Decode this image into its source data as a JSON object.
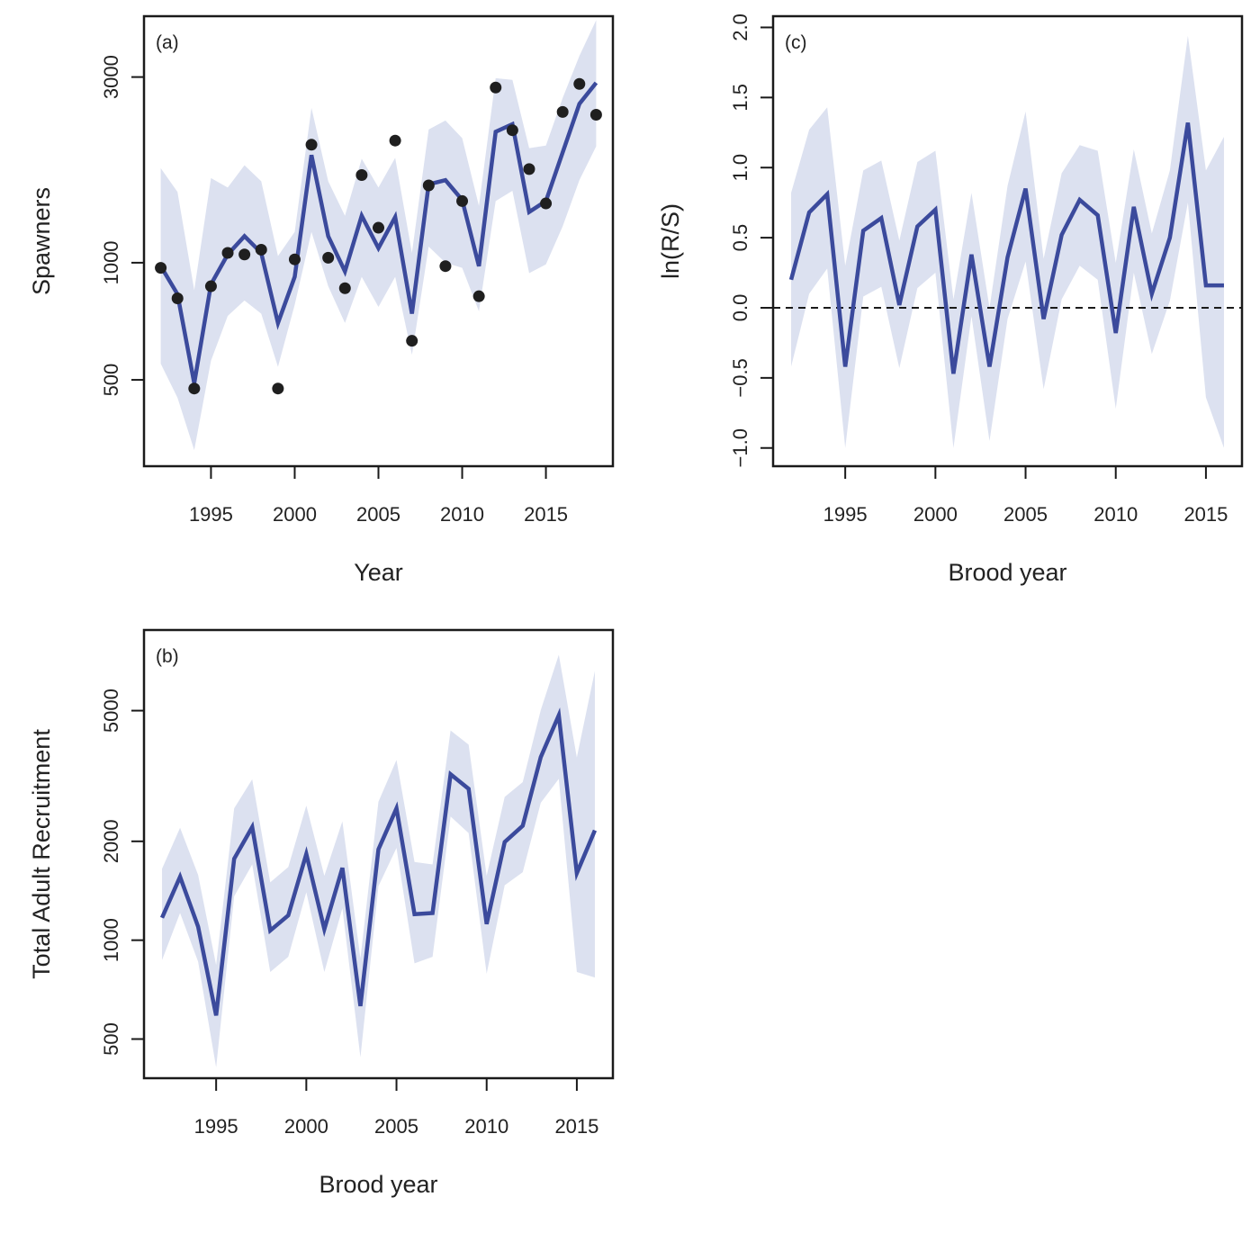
{
  "colors": {
    "line": "#3b4a9c",
    "band": "#dce1f0",
    "points": "#1f1f1f",
    "axis": "#1a1a1a"
  },
  "chart_data": [
    {
      "id": "a",
      "type": "line",
      "panel_label": "(a)",
      "xlabel": "Year",
      "ylabel": "Spawners",
      "y_scale": "log",
      "xlim": [
        1991,
        2019
      ],
      "ylim": [
        300,
        4300
      ],
      "x_ticks": [
        1995,
        2000,
        2005,
        2010,
        2015
      ],
      "x_tick_labels": [
        "1995",
        "2000",
        "2005",
        "2010",
        "2015"
      ],
      "y_ticks": [
        500,
        1000,
        3000
      ],
      "y_tick_labels": [
        "500",
        "1000",
        "3000"
      ],
      "series": [
        {
          "kind": "estimate",
          "x": [
            1992,
            1993,
            1994,
            1995,
            1996,
            1997,
            1998,
            1999,
            2000,
            2001,
            2002,
            2003,
            2004,
            2005,
            2006,
            2007,
            2008,
            2009,
            2010,
            2011,
            2012,
            2013,
            2014,
            2015,
            2016,
            2017,
            2018
          ],
          "values": [
            980,
            830,
            490,
            880,
            1050,
            1170,
            1060,
            700,
            920,
            1890,
            1170,
            950,
            1320,
            1090,
            1310,
            740,
            1590,
            1630,
            1450,
            980,
            2170,
            2270,
            1350,
            1440,
            1920,
            2560,
            2900
          ],
          "lower": [
            550,
            450,
            330,
            560,
            730,
            800,
            740,
            540,
            780,
            1200,
            870,
            700,
            920,
            770,
            920,
            580,
            1100,
            1000,
            970,
            750,
            1440,
            1530,
            940,
            990,
            1240,
            1630,
            1990
          ],
          "upper": [
            1750,
            1520,
            850,
            1650,
            1560,
            1780,
            1620,
            1040,
            1200,
            2500,
            1620,
            1320,
            1850,
            1560,
            1860,
            1060,
            2200,
            2320,
            2090,
            1400,
            2980,
            2950,
            1970,
            2000,
            2650,
            3400,
            4200
          ]
        },
        {
          "kind": "observed",
          "x": [
            1992,
            1993,
            1994,
            1995,
            1996,
            1997,
            1998,
            1999,
            2000,
            2001,
            2002,
            2003,
            2004,
            2005,
            2006,
            2007,
            2008,
            2009,
            2010,
            2011,
            2012,
            2013,
            2014,
            2015,
            2016,
            2017,
            2018
          ],
          "values": [
            970,
            810,
            475,
            870,
            1060,
            1050,
            1080,
            475,
            1020,
            2010,
            1030,
            860,
            1680,
            1230,
            2060,
            630,
            1580,
            980,
            1440,
            820,
            2820,
            2190,
            1740,
            1420,
            2440,
            2880,
            2400
          ]
        }
      ]
    },
    {
      "id": "b",
      "type": "line",
      "panel_label": "(b)",
      "xlabel": "Brood year",
      "ylabel": "Total Adult Recruitment",
      "y_scale": "log",
      "xlim": [
        1991,
        2017
      ],
      "ylim": [
        380,
        8800
      ],
      "x_ticks": [
        1995,
        2000,
        2005,
        2010,
        2015
      ],
      "x_tick_labels": [
        "1995",
        "2000",
        "2005",
        "2010",
        "2015"
      ],
      "y_ticks": [
        500,
        1000,
        2000,
        5000
      ],
      "y_tick_labels": [
        "500",
        "1000",
        "2000",
        "5000"
      ],
      "series": [
        {
          "kind": "estimate",
          "x": [
            1992,
            1993,
            1994,
            1995,
            1996,
            1997,
            1998,
            1999,
            2000,
            2001,
            2002,
            2003,
            2004,
            2005,
            2006,
            2007,
            2008,
            2009,
            2010,
            2011,
            2012,
            2013,
            2014,
            2015,
            2016
          ],
          "values": [
            1170,
            1560,
            1100,
            590,
            1770,
            2210,
            1070,
            1190,
            1830,
            1080,
            1660,
            630,
            1890,
            2520,
            1200,
            1210,
            3200,
            2890,
            1120,
            1990,
            2230,
            3610,
            4840,
            1600,
            2160
          ],
          "lower": [
            870,
            1210,
            860,
            410,
            1360,
            1700,
            800,
            890,
            1400,
            800,
            1250,
            440,
            1460,
            1910,
            850,
            890,
            2380,
            2120,
            790,
            1470,
            1610,
            2620,
            3100,
            800,
            770
          ],
          "upper": [
            1650,
            2200,
            1580,
            840,
            2520,
            3090,
            1500,
            1670,
            2570,
            1570,
            2300,
            880,
            2640,
            3540,
            1730,
            1700,
            4350,
            3940,
            1570,
            2730,
            3030,
            5020,
            7400,
            3600,
            6600
          ]
        }
      ]
    },
    {
      "id": "c",
      "type": "line",
      "panel_label": "(c)",
      "xlabel": "Brood year",
      "ylabel": "ln(R/S)",
      "y_scale": "linear",
      "xlim": [
        1991,
        2017
      ],
      "ylim": [
        -1.13,
        2.08
      ],
      "x_ticks": [
        1995,
        2000,
        2005,
        2010,
        2015
      ],
      "x_tick_labels": [
        "1995",
        "2000",
        "2005",
        "2010",
        "2015"
      ],
      "y_ticks": [
        -1.0,
        -0.5,
        0.0,
        0.5,
        1.0,
        1.5,
        2.0
      ],
      "y_tick_labels": [
        "−1.0",
        "−0.5",
        "0.0",
        "0.5",
        "1.0",
        "1.5",
        "2.0"
      ],
      "reference_line": 0.0,
      "series": [
        {
          "kind": "estimate",
          "x": [
            1992,
            1993,
            1994,
            1995,
            1996,
            1997,
            1998,
            1999,
            2000,
            2001,
            2002,
            2003,
            2004,
            2005,
            2006,
            2007,
            2008,
            2009,
            2010,
            2011,
            2012,
            2013,
            2014,
            2015,
            2016
          ],
          "values": [
            0.2,
            0.68,
            0.81,
            -0.42,
            0.55,
            0.64,
            0.02,
            0.58,
            0.7,
            -0.47,
            0.38,
            -0.42,
            0.36,
            0.85,
            -0.08,
            0.52,
            0.77,
            0.66,
            -0.18,
            0.72,
            0.1,
            0.5,
            1.32,
            0.16,
            0.16
          ],
          "lower": [
            -0.42,
            0.1,
            0.28,
            -1.0,
            0.08,
            0.15,
            -0.43,
            0.14,
            0.25,
            -1.0,
            -0.06,
            -0.95,
            -0.08,
            0.33,
            -0.58,
            0.06,
            0.3,
            0.2,
            -0.72,
            0.25,
            -0.33,
            0.05,
            0.75,
            -0.64,
            -1.0
          ],
          "upper": [
            0.82,
            1.27,
            1.43,
            0.3,
            0.98,
            1.05,
            0.48,
            1.04,
            1.12,
            0.06,
            0.82,
            0.0,
            0.87,
            1.4,
            0.35,
            0.96,
            1.16,
            1.12,
            0.32,
            1.13,
            0.53,
            0.98,
            1.94,
            0.98,
            1.22
          ]
        }
      ]
    }
  ]
}
